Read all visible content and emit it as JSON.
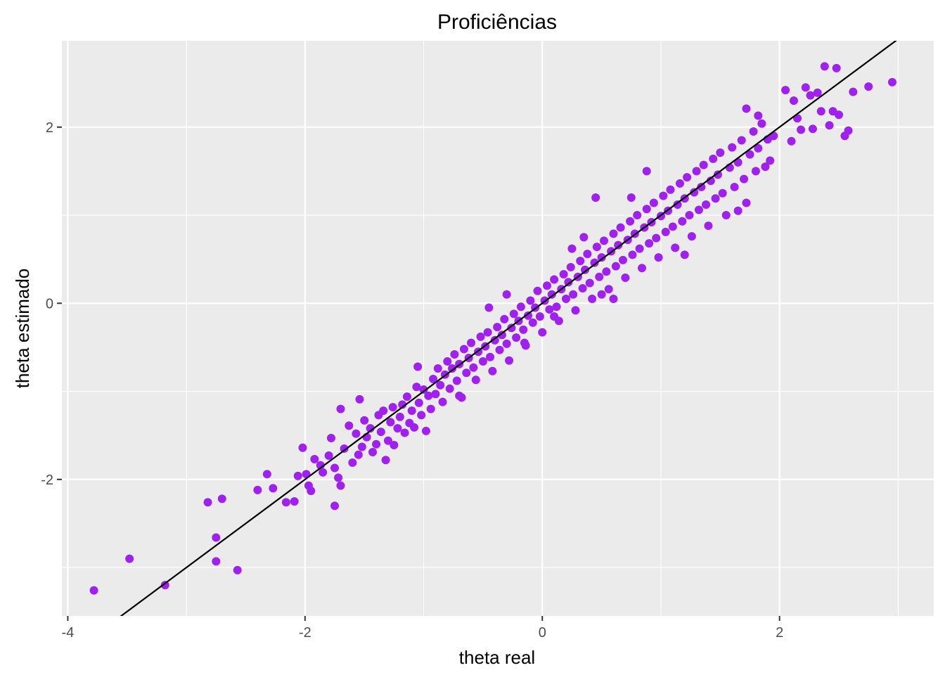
{
  "chart_data": {
    "type": "scatter",
    "title": "Proficiências",
    "xlabel": "theta real",
    "ylabel": "theta estimado",
    "xlim": [
      -4.05,
      3.3
    ],
    "ylim": [
      -3.55,
      2.98
    ],
    "x_ticks": [
      -4,
      -2,
      0,
      2
    ],
    "y_ticks": [
      -2,
      0,
      2
    ],
    "x_tick_labels": [
      "-4",
      "-2",
      "0",
      "2"
    ],
    "y_tick_labels": [
      "-2",
      "0",
      "2"
    ],
    "grid": true,
    "point_color": "#A020F0",
    "line_color": "#000000",
    "reference_line": {
      "intercept": 0,
      "slope": 1
    },
    "series": [
      {
        "points": [
          [
            -3.78,
            -3.26
          ],
          [
            -3.48,
            -2.9
          ],
          [
            -3.18,
            -3.2
          ],
          [
            -2.82,
            -2.26
          ],
          [
            -2.7,
            -2.22
          ],
          [
            -2.75,
            -2.66
          ],
          [
            -2.75,
            -2.93
          ],
          [
            -2.57,
            -3.03
          ],
          [
            -2.4,
            -2.12
          ],
          [
            -2.27,
            -2.1
          ],
          [
            -2.32,
            -1.94
          ],
          [
            -2.16,
            -2.26
          ],
          [
            -2.09,
            -2.25
          ],
          [
            -2.06,
            -1.96
          ],
          [
            -2.02,
            -1.64
          ],
          [
            -1.99,
            -1.94
          ],
          [
            -1.97,
            -2.07
          ],
          [
            -1.95,
            -2.13
          ],
          [
            -1.92,
            -1.77
          ],
          [
            -1.87,
            -1.84
          ],
          [
            -1.85,
            -1.92
          ],
          [
            -1.8,
            -1.73
          ],
          [
            -1.78,
            -1.53
          ],
          [
            -1.75,
            -1.87
          ],
          [
            -1.75,
            -2.3
          ],
          [
            -1.72,
            -1.98
          ],
          [
            -1.7,
            -2.07
          ],
          [
            -1.67,
            -1.65
          ],
          [
            -1.63,
            -1.39
          ],
          [
            -1.6,
            -1.81
          ],
          [
            -1.57,
            -1.48
          ],
          [
            -1.55,
            -1.72
          ],
          [
            -1.54,
            -1.09
          ],
          [
            -1.52,
            -1.63
          ],
          [
            -1.5,
            -1.33
          ],
          [
            -1.48,
            -1.52
          ],
          [
            -1.45,
            -1.42
          ],
          [
            -1.43,
            -1.69
          ],
          [
            -1.4,
            -1.6
          ],
          [
            -1.38,
            -1.27
          ],
          [
            -1.36,
            -1.46
          ],
          [
            -1.34,
            -1.22
          ],
          [
            -1.32,
            -1.78
          ],
          [
            -1.3,
            -1.56
          ],
          [
            -1.28,
            -1.35
          ],
          [
            -1.26,
            -1.18
          ],
          [
            -1.25,
            -1.61
          ],
          [
            -1.22,
            -1.42
          ],
          [
            -1.2,
            -1.29
          ],
          [
            -1.18,
            -1.15
          ],
          [
            -1.16,
            -1.47
          ],
          [
            -1.14,
            -1.06
          ],
          [
            -1.12,
            -1.36
          ],
          [
            -1.1,
            -1.22
          ],
          [
            -1.08,
            -1.41
          ],
          [
            -1.06,
            -0.95
          ],
          [
            -1.04,
            -1.13
          ],
          [
            -1.02,
            -1.27
          ],
          [
            -1.0,
            -0.98
          ],
          [
            -0.98,
            -1.45
          ],
          [
            -0.96,
            -1.05
          ],
          [
            -0.94,
            -1.2
          ],
          [
            -0.92,
            -0.86
          ],
          [
            -0.9,
            -1.03
          ],
          [
            -0.88,
            -0.74
          ],
          [
            -0.86,
            -0.93
          ],
          [
            -0.84,
            -1.12
          ],
          [
            -0.82,
            -0.81
          ],
          [
            -0.8,
            -0.66
          ],
          [
            -0.78,
            -0.97
          ],
          [
            -0.76,
            -0.74
          ],
          [
            -0.74,
            -0.58
          ],
          [
            -0.72,
            -0.88
          ],
          [
            -0.7,
            -0.69
          ],
          [
            -0.68,
            -1.07
          ],
          [
            -0.66,
            -0.52
          ],
          [
            -0.64,
            -0.79
          ],
          [
            -0.62,
            -0.62
          ],
          [
            -0.6,
            -0.45
          ],
          [
            -0.58,
            -0.73
          ],
          [
            -0.56,
            -0.87
          ],
          [
            -0.54,
            -0.55
          ],
          [
            -0.52,
            -0.38
          ],
          [
            -0.5,
            -0.66
          ],
          [
            -0.48,
            -0.49
          ],
          [
            -0.46,
            -0.33
          ],
          [
            -0.44,
            -0.61
          ],
          [
            -0.42,
            -0.77
          ],
          [
            -0.4,
            -0.42
          ],
          [
            -0.38,
            -0.27
          ],
          [
            -0.36,
            -0.53
          ],
          [
            -0.34,
            -0.36
          ],
          [
            -0.32,
            -0.18
          ],
          [
            -0.3,
            -0.46
          ],
          [
            -0.28,
            -0.65
          ],
          [
            -0.26,
            -0.28
          ],
          [
            -0.24,
            -0.12
          ],
          [
            -0.22,
            -0.39
          ],
          [
            -0.2,
            -0.2
          ],
          [
            -0.18,
            -0.04
          ],
          [
            -0.16,
            -0.3
          ],
          [
            -0.14,
            -0.48
          ],
          [
            -0.12,
            -0.14
          ],
          [
            -0.1,
            0.03
          ],
          [
            -0.08,
            -0.22
          ],
          [
            -0.06,
            -0.05
          ],
          [
            -0.04,
            0.14
          ],
          [
            -0.02,
            -0.15
          ],
          [
            0.0,
            -0.33
          ],
          [
            0.02,
            0.03
          ],
          [
            0.04,
            0.2
          ],
          [
            0.06,
            -0.07
          ],
          [
            0.08,
            0.1
          ],
          [
            0.1,
            0.27
          ],
          [
            0.12,
            -0.04
          ],
          [
            0.14,
            -0.2
          ],
          [
            0.16,
            0.16
          ],
          [
            0.18,
            0.33
          ],
          [
            0.2,
            0.05
          ],
          [
            0.22,
            0.24
          ],
          [
            0.24,
            0.41
          ],
          [
            0.26,
            0.1
          ],
          [
            0.28,
            -0.08
          ],
          [
            0.3,
            0.3
          ],
          [
            0.32,
            0.48
          ],
          [
            0.34,
            0.17
          ],
          [
            0.36,
            0.38
          ],
          [
            0.38,
            0.56
          ],
          [
            0.4,
            0.23
          ],
          [
            0.42,
            0.05
          ],
          [
            0.44,
            0.46
          ],
          [
            0.46,
            0.64
          ],
          [
            0.48,
            0.3
          ],
          [
            0.5,
            0.52
          ],
          [
            0.52,
            0.71
          ],
          [
            0.54,
            0.36
          ],
          [
            0.56,
            0.16
          ],
          [
            0.58,
            0.59
          ],
          [
            0.6,
            0.79
          ],
          [
            0.62,
            0.42
          ],
          [
            0.64,
            0.66
          ],
          [
            0.66,
            0.86
          ],
          [
            0.68,
            0.49
          ],
          [
            0.7,
            0.29
          ],
          [
            0.72,
            0.72
          ],
          [
            0.74,
            0.93
          ],
          [
            0.76,
            0.55
          ],
          [
            0.78,
            0.79
          ],
          [
            0.8,
            1.0
          ],
          [
            0.82,
            0.62
          ],
          [
            0.84,
            0.4
          ],
          [
            0.86,
            0.86
          ],
          [
            0.88,
            1.07
          ],
          [
            0.9,
            0.68
          ],
          [
            0.92,
            0.92
          ],
          [
            0.94,
            1.14
          ],
          [
            0.96,
            0.74
          ],
          [
            0.98,
            0.52
          ],
          [
            1.0,
            0.99
          ],
          [
            1.02,
            1.22
          ],
          [
            1.04,
            0.81
          ],
          [
            1.06,
            1.05
          ],
          [
            1.08,
            1.29
          ],
          [
            1.1,
            0.87
          ],
          [
            1.12,
            0.63
          ],
          [
            1.14,
            1.12
          ],
          [
            1.16,
            1.36
          ],
          [
            1.18,
            0.93
          ],
          [
            1.2,
            1.19
          ],
          [
            1.22,
            1.43
          ],
          [
            1.24,
            1.0
          ],
          [
            1.26,
            0.76
          ],
          [
            1.28,
            1.26
          ],
          [
            1.3,
            1.5
          ],
          [
            1.32,
            1.06
          ],
          [
            1.34,
            1.32
          ],
          [
            1.36,
            1.57
          ],
          [
            1.38,
            1.12
          ],
          [
            1.4,
            0.88
          ],
          [
            1.42,
            1.39
          ],
          [
            1.44,
            1.64
          ],
          [
            1.46,
            1.19
          ],
          [
            1.48,
            1.46
          ],
          [
            1.5,
            1.71
          ],
          [
            1.52,
            1.25
          ],
          [
            1.55,
            1.0
          ],
          [
            1.58,
            1.54
          ],
          [
            1.6,
            1.77
          ],
          [
            1.62,
            1.32
          ],
          [
            1.65,
            1.6
          ],
          [
            1.68,
            1.85
          ],
          [
            1.7,
            1.41
          ],
          [
            1.72,
            1.14
          ],
          [
            1.75,
            1.69
          ],
          [
            1.78,
            1.95
          ],
          [
            1.8,
            1.5
          ],
          [
            1.82,
            1.76
          ],
          [
            1.85,
            2.04
          ],
          [
            1.88,
            1.55
          ],
          [
            1.9,
            1.86
          ],
          [
            0.45,
            1.2
          ],
          [
            0.88,
            1.5
          ],
          [
            -1.05,
            -0.72
          ],
          [
            0.35,
            0.75
          ],
          [
            -0.3,
            0.1
          ],
          [
            0.6,
            0.05
          ],
          [
            -0.7,
            -1.05
          ],
          [
            1.2,
            0.55
          ],
          [
            -1.7,
            -1.2
          ],
          [
            0.1,
            -0.15
          ],
          [
            0.25,
            0.62
          ],
          [
            -0.15,
            -0.45
          ],
          [
            0.5,
            0.1
          ],
          [
            -0.45,
            -0.05
          ],
          [
            0.75,
            1.2
          ],
          [
            1.65,
            1.05
          ],
          [
            1.72,
            2.21
          ],
          [
            1.82,
            2.13
          ],
          [
            1.92,
            1.62
          ],
          [
            2.05,
            2.42
          ],
          [
            2.12,
            2.3
          ],
          [
            2.18,
            1.97
          ],
          [
            2.22,
            2.45
          ],
          [
            2.28,
            1.98
          ],
          [
            2.32,
            2.39
          ],
          [
            2.35,
            2.18
          ],
          [
            2.38,
            2.69
          ],
          [
            2.42,
            2.02
          ],
          [
            2.45,
            2.18
          ],
          [
            2.48,
            2.67
          ],
          [
            2.5,
            2.14
          ],
          [
            2.55,
            1.9
          ],
          [
            2.58,
            1.96
          ],
          [
            2.62,
            2.4
          ],
          [
            2.75,
            2.46
          ],
          [
            2.95,
            2.51
          ],
          [
            1.95,
            1.9
          ],
          [
            2.1,
            1.84
          ],
          [
            2.15,
            2.1
          ],
          [
            2.26,
            2.36
          ]
        ]
      }
    ]
  }
}
